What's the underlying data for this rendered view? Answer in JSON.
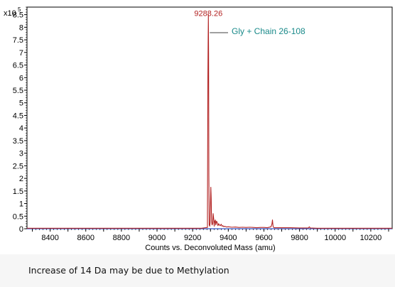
{
  "chart_data": {
    "type": "line",
    "xlabel": "Counts vs. Deconvoluted Mass (amu)",
    "ylabel": "",
    "y_multiplier": {
      "base": "x10",
      "exponent": "5"
    },
    "xlim": [
      8270,
      10320
    ],
    "ylim": [
      0,
      8.8
    ],
    "x_ticks": [
      8400,
      8600,
      8800,
      9000,
      9200,
      9400,
      9600,
      9800,
      10000,
      10200
    ],
    "y_ticks": [
      0,
      0.5,
      1,
      1.5,
      2,
      2.5,
      3,
      3.5,
      4,
      4.5,
      5,
      5.5,
      6,
      6.5,
      7,
      7.5,
      8,
      8.5
    ],
    "grid": false,
    "line_color": "#b22222",
    "annotations": [
      {
        "text": "9288.26",
        "x": 9288.26,
        "y": 8.5,
        "color": "#b22222"
      },
      {
        "text": "Gly + Chain 26-108",
        "color": "#1a8a8a"
      }
    ],
    "series": [
      {
        "x": [
          8270,
          8500,
          9000,
          9250,
          9283,
          9285.5,
          9287,
          9288.26,
          9289.5,
          9291,
          9293,
          9296,
          9298,
          9300,
          9302,
          9304,
          9306,
          9309,
          9312,
          9315,
          9318,
          9321,
          9324,
          9327,
          9330,
          9334,
          9338,
          9342,
          9346,
          9350,
          9355,
          9360,
          9365,
          9370,
          9375,
          9380,
          9390,
          9400,
          9420,
          9440,
          9460,
          9480,
          9500,
          9520,
          9540,
          9560,
          9580,
          9600,
          9620,
          9640,
          9645,
          9648,
          9650,
          9652,
          9655,
          9660,
          9700,
          9750,
          9800,
          9850,
          9855,
          9860,
          9900,
          10000,
          10100,
          10200,
          10320
        ],
        "y": [
          0.02,
          0.02,
          0.02,
          0.02,
          0.05,
          6.0,
          7.5,
          8.5,
          7.0,
          2.1,
          0.15,
          0.1,
          0.25,
          1.0,
          1.65,
          1.2,
          0.3,
          0.15,
          0.2,
          0.6,
          0.4,
          0.1,
          0.3,
          0.35,
          0.15,
          0.3,
          0.25,
          0.12,
          0.2,
          0.15,
          0.12,
          0.18,
          0.1,
          0.12,
          0.08,
          0.1,
          0.07,
          0.08,
          0.06,
          0.07,
          0.05,
          0.06,
          0.05,
          0.06,
          0.05,
          0.04,
          0.05,
          0.05,
          0.04,
          0.08,
          0.18,
          0.35,
          0.2,
          0.08,
          0.05,
          0.04,
          0.04,
          0.04,
          0.03,
          0.03,
          0.08,
          0.03,
          0.02,
          0.02,
          0.02,
          0.02,
          0.02
        ]
      }
    ]
  },
  "caption": "Increase of 14 Da may be due to  Methylation"
}
